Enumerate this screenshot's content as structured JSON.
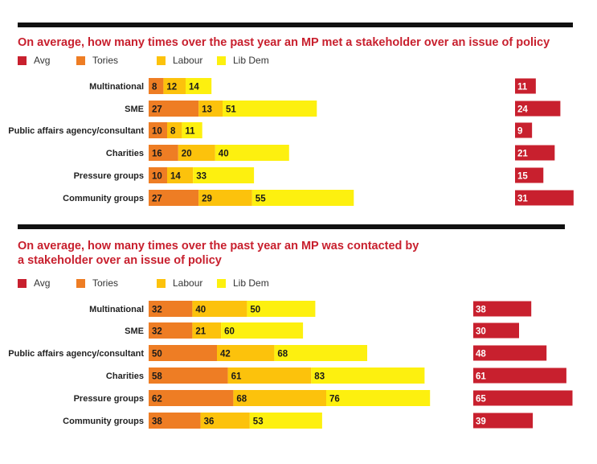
{
  "chart_data": [
    {
      "type": "bar",
      "stacked": true,
      "title": "On average, how many times over the past year an MP met a stakeholder over an issue of policy",
      "categories": [
        "Multinational",
        "SME",
        "Public affairs agency/consultant",
        "Charities",
        "Pressure groups",
        "Community groups"
      ],
      "series": [
        {
          "name": "Tories",
          "values": [
            8,
            27,
            10,
            16,
            10,
            27
          ]
        },
        {
          "name": "Labour",
          "values": [
            12,
            13,
            8,
            20,
            14,
            29
          ]
        },
        {
          "name": "Lib Dem",
          "values": [
            14,
            51,
            11,
            40,
            33,
            55
          ]
        }
      ],
      "avg": {
        "name": "Avg",
        "values": [
          11,
          24,
          9,
          21,
          15,
          31
        ]
      },
      "legend": [
        "Avg",
        "Tories",
        "Labour",
        "Lib Dem"
      ]
    },
    {
      "type": "bar",
      "stacked": true,
      "title": "On average, how many times over the past year an MP was contacted by\na stakeholder over an issue of policy",
      "categories": [
        "Multinational",
        "SME",
        "Public affairs agency/consultant",
        "Charities",
        "Pressure groups",
        "Community groups"
      ],
      "series": [
        {
          "name": "Tories",
          "values": [
            32,
            32,
            50,
            58,
            62,
            38
          ]
        },
        {
          "name": "Labour",
          "values": [
            40,
            21,
            42,
            61,
            68,
            36
          ]
        },
        {
          "name": "Lib Dem",
          "values": [
            50,
            60,
            68,
            83,
            76,
            53
          ]
        }
      ],
      "avg": {
        "name": "Avg",
        "values": [
          38,
          30,
          48,
          61,
          65,
          39
        ]
      },
      "legend": [
        "Avg",
        "Tories",
        "Labour",
        "Lib Dem"
      ]
    }
  ],
  "colors": {
    "avg": "#c8202e",
    "tories": "#ee7d24",
    "labour": "#fcc20c",
    "libdem": "#fdf00f",
    "text": "#222222",
    "title": "#c8202e"
  }
}
